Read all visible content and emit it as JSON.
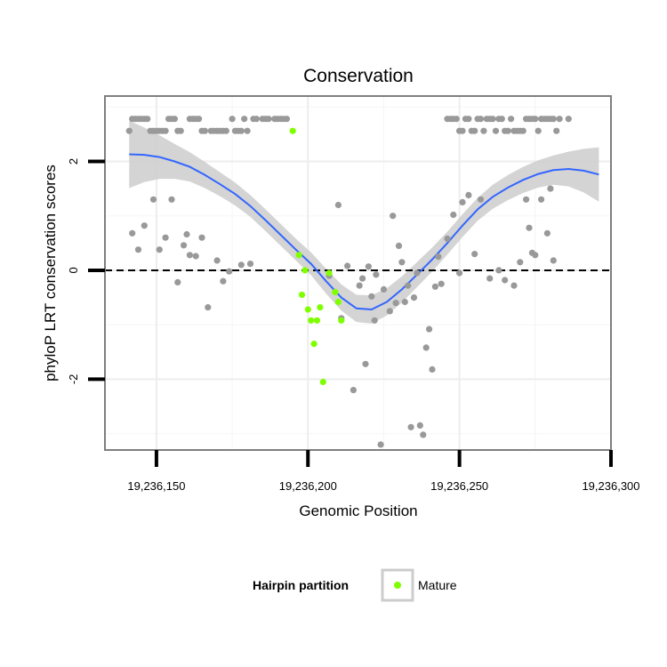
{
  "chart_data": {
    "type": "scatter",
    "title": "Conservation",
    "xlabel": "Genomic Position",
    "ylabel": "phyloP LRT conservation scores",
    "xlim": [
      19236133,
      19236300
    ],
    "ylim": [
      -3.3,
      3.2
    ],
    "x_ticks": [
      {
        "value": 19236150,
        "label": "19,236,150"
      },
      {
        "value": 19236200,
        "label": "19,236,200"
      },
      {
        "value": 19236250,
        "label": "19,236,250"
      },
      {
        "value": 19236300,
        "label": "19,236,300"
      }
    ],
    "y_ticks": [
      {
        "value": -2,
        "label": "-2"
      },
      {
        "value": 0,
        "label": "0"
      },
      {
        "value": 2,
        "label": "2"
      }
    ],
    "reference_line": {
      "y": 0,
      "style": "dashed"
    },
    "legend": {
      "title": "Hairpin partition",
      "entries": [
        {
          "label": "Mature",
          "color": "#7fff00"
        }
      ]
    },
    "colors": {
      "other": "#999999",
      "mature": "#7fff00",
      "smooth": "#3366ff",
      "ribbon": "#cccccc"
    },
    "series": [
      {
        "name": "other",
        "points": [
          [
            19236141,
            2.56
          ],
          [
            19236142,
            2.78
          ],
          [
            19236143,
            2.78
          ],
          [
            19236144,
            2.78
          ],
          [
            19236145,
            2.78
          ],
          [
            19236146,
            2.78
          ],
          [
            19236147,
            2.78
          ],
          [
            19236148,
            2.56
          ],
          [
            19236149,
            2.56
          ],
          [
            19236150,
            2.56
          ],
          [
            19236151,
            2.56
          ],
          [
            19236152,
            2.56
          ],
          [
            19236153,
            2.56
          ],
          [
            19236154,
            2.78
          ],
          [
            19236155,
            2.78
          ],
          [
            19236156,
            2.78
          ],
          [
            19236157,
            2.56
          ],
          [
            19236158,
            2.56
          ],
          [
            19236161,
            2.78
          ],
          [
            19236162,
            2.78
          ],
          [
            19236163,
            2.78
          ],
          [
            19236164,
            2.78
          ],
          [
            19236165,
            2.56
          ],
          [
            19236166,
            2.56
          ],
          [
            19236168,
            2.56
          ],
          [
            19236169,
            2.56
          ],
          [
            19236170,
            2.56
          ],
          [
            19236171,
            2.56
          ],
          [
            19236172,
            2.56
          ],
          [
            19236173,
            2.56
          ],
          [
            19236175,
            2.78
          ],
          [
            19236176,
            2.56
          ],
          [
            19236177,
            2.56
          ],
          [
            19236178,
            2.56
          ],
          [
            19236179,
            2.78
          ],
          [
            19236180,
            2.56
          ],
          [
            19236182,
            2.78
          ],
          [
            19236183,
            2.78
          ],
          [
            19236185,
            2.78
          ],
          [
            19236186,
            2.78
          ],
          [
            19236187,
            2.78
          ],
          [
            19236189,
            2.78
          ],
          [
            19236190,
            2.78
          ],
          [
            19236191,
            2.78
          ],
          [
            19236192,
            2.78
          ],
          [
            19236193,
            2.78
          ],
          [
            19236142,
            0.68
          ],
          [
            19236144,
            0.38
          ],
          [
            19236146,
            0.82
          ],
          [
            19236149,
            1.3
          ],
          [
            19236151,
            0.38
          ],
          [
            19236153,
            0.6
          ],
          [
            19236155,
            1.3
          ],
          [
            19236157,
            -0.22
          ],
          [
            19236159,
            0.46
          ],
          [
            19236160,
            0.66
          ],
          [
            19236161,
            0.28
          ],
          [
            19236163,
            0.26
          ],
          [
            19236165,
            0.6
          ],
          [
            19236167,
            -0.68
          ],
          [
            19236170,
            0.18
          ],
          [
            19236172,
            -0.2
          ],
          [
            19236174,
            -0.02
          ],
          [
            19236178,
            0.1
          ],
          [
            19236181,
            0.12
          ],
          [
            19236207,
            -0.1
          ],
          [
            19236210,
            1.2
          ],
          [
            19236211,
            -0.88
          ],
          [
            19236213,
            0.08
          ],
          [
            19236215,
            -2.2
          ],
          [
            19236217,
            -0.28
          ],
          [
            19236218,
            -0.15
          ],
          [
            19236219,
            -1.72
          ],
          [
            19236220,
            0.07
          ],
          [
            19236221,
            -0.48
          ],
          [
            19236222,
            -0.92
          ],
          [
            19236222.5,
            -0.08
          ],
          [
            19236224,
            -3.2
          ],
          [
            19236225,
            -0.35
          ],
          [
            19236227,
            -0.75
          ],
          [
            19236228,
            1.0
          ],
          [
            19236229,
            -0.6
          ],
          [
            19236230,
            0.45
          ],
          [
            19236231,
            0.15
          ],
          [
            19236232,
            -0.58
          ],
          [
            19236233,
            -0.28
          ],
          [
            19236234,
            -2.88
          ],
          [
            19236235,
            -0.5
          ],
          [
            19236236,
            -0.05
          ],
          [
            19236237,
            -2.85
          ],
          [
            19236238,
            -3.02
          ],
          [
            19236239,
            -1.42
          ],
          [
            19236240,
            -1.08
          ],
          [
            19236241,
            -1.82
          ],
          [
            19236242,
            -0.3
          ],
          [
            19236243,
            0.25
          ],
          [
            19236244,
            -0.25
          ],
          [
            19236246,
            0.58
          ],
          [
            19236248,
            1.02
          ],
          [
            19236250,
            -0.05
          ],
          [
            19236251,
            1.25
          ],
          [
            19236253,
            1.38
          ],
          [
            19236255,
            0.3
          ],
          [
            19236257,
            1.3
          ],
          [
            19236260,
            -0.15
          ],
          [
            19236263,
            0.0
          ],
          [
            19236265,
            -0.18
          ],
          [
            19236268,
            -0.28
          ],
          [
            19236270,
            0.15
          ],
          [
            19236272,
            1.3
          ],
          [
            19236273,
            0.78
          ],
          [
            19236274,
            0.32
          ],
          [
            19236275,
            0.28
          ],
          [
            19236277,
            1.3
          ],
          [
            19236279,
            0.68
          ],
          [
            19236280,
            1.5
          ],
          [
            19236281,
            0.18
          ],
          [
            19236246,
            2.78
          ],
          [
            19236247,
            2.78
          ],
          [
            19236248,
            2.78
          ],
          [
            19236249,
            2.78
          ],
          [
            19236250,
            2.56
          ],
          [
            19236251,
            2.56
          ],
          [
            19236252,
            2.78
          ],
          [
            19236253,
            2.78
          ],
          [
            19236254,
            2.56
          ],
          [
            19236255,
            2.56
          ],
          [
            19236256,
            2.78
          ],
          [
            19236257,
            2.78
          ],
          [
            19236258,
            2.56
          ],
          [
            19236259,
            2.78
          ],
          [
            19236260,
            2.78
          ],
          [
            19236261,
            2.78
          ],
          [
            19236262,
            2.56
          ],
          [
            19236263,
            2.78
          ],
          [
            19236264,
            2.78
          ],
          [
            19236265,
            2.56
          ],
          [
            19236266,
            2.56
          ],
          [
            19236267,
            2.78
          ],
          [
            19236268,
            2.56
          ],
          [
            19236269,
            2.56
          ],
          [
            19236270,
            2.56
          ],
          [
            19236271,
            2.56
          ],
          [
            19236272,
            2.78
          ],
          [
            19236273,
            2.78
          ],
          [
            19236274,
            2.78
          ],
          [
            19236275,
            2.78
          ],
          [
            19236276,
            2.56
          ],
          [
            19236277,
            2.78
          ],
          [
            19236278,
            2.78
          ],
          [
            19236279,
            2.78
          ],
          [
            19236280,
            2.78
          ],
          [
            19236281,
            2.78
          ],
          [
            19236282,
            2.56
          ],
          [
            19236283,
            2.78
          ],
          [
            19236286,
            2.78
          ]
        ]
      },
      {
        "name": "Mature",
        "points": [
          [
            19236195,
            2.56
          ],
          [
            19236197,
            0.28
          ],
          [
            19236198,
            -0.45
          ],
          [
            19236199,
            0.0
          ],
          [
            19236200,
            -0.72
          ],
          [
            19236201,
            -0.92
          ],
          [
            19236202,
            -1.35
          ],
          [
            19236203,
            -0.92
          ],
          [
            19236204,
            -0.68
          ],
          [
            19236205,
            -2.05
          ],
          [
            19236207,
            -0.05
          ],
          [
            19236209,
            -0.4
          ],
          [
            19236210,
            -0.58
          ],
          [
            19236211,
            -0.92
          ]
        ]
      }
    ],
    "smooth": {
      "x": [
        19236141,
        19236146,
        19236151,
        19236156,
        19236161,
        19236166,
        19236171,
        19236176,
        19236181,
        19236186,
        19236191,
        19236196,
        19236201,
        19236206,
        19236211,
        19236216,
        19236221,
        19236226,
        19236231,
        19236236,
        19236241,
        19236246,
        19236251,
        19236256,
        19236261,
        19236266,
        19236271,
        19236276,
        19236281,
        19236286,
        19236291,
        19236296
      ],
      "y": [
        2.13,
        2.12,
        2.08,
        2.0,
        1.9,
        1.75,
        1.58,
        1.4,
        1.18,
        0.92,
        0.65,
        0.38,
        0.12,
        -0.2,
        -0.5,
        -0.7,
        -0.72,
        -0.58,
        -0.35,
        -0.08,
        0.2,
        0.5,
        0.82,
        1.12,
        1.35,
        1.52,
        1.66,
        1.77,
        1.84,
        1.86,
        1.83,
        1.76
      ],
      "se": [
        0.62,
        0.5,
        0.4,
        0.32,
        0.27,
        0.24,
        0.22,
        0.21,
        0.2,
        0.2,
        0.2,
        0.2,
        0.21,
        0.23,
        0.24,
        0.25,
        0.26,
        0.25,
        0.24,
        0.23,
        0.22,
        0.21,
        0.21,
        0.21,
        0.22,
        0.23,
        0.24,
        0.25,
        0.27,
        0.32,
        0.4,
        0.5
      ]
    }
  }
}
